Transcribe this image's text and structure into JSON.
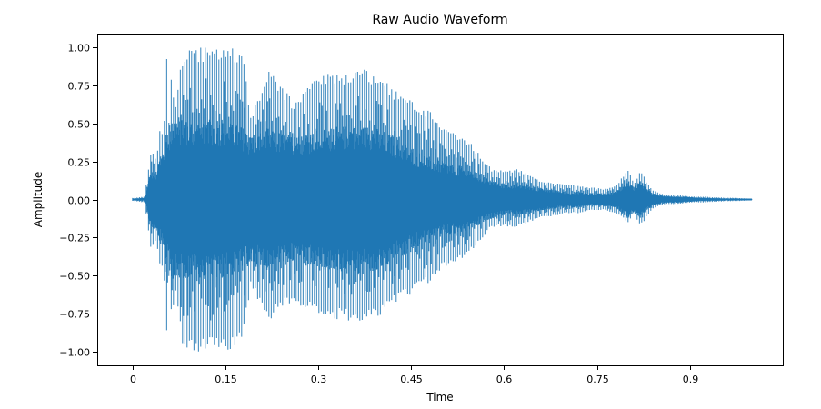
{
  "chart_data": {
    "type": "line",
    "title": "Raw Audio Waveform",
    "xlabel": "Time",
    "ylabel": "Amplitude",
    "xlim": [
      -0.057,
      1.05
    ],
    "ylim": [
      -1.09,
      1.09
    ],
    "xticks": [
      {
        "value": 0,
        "label": "0"
      },
      {
        "value": 0.15,
        "label": "0.15"
      },
      {
        "value": 0.3,
        "label": "0.3"
      },
      {
        "value": 0.45,
        "label": "0.45"
      },
      {
        "value": 0.6,
        "label": "0.6"
      },
      {
        "value": 0.75,
        "label": "0.75"
      },
      {
        "value": 0.9,
        "label": "0.9"
      }
    ],
    "yticks": [
      {
        "value": 1.0,
        "label": "1.00"
      },
      {
        "value": 0.75,
        "label": "0.75"
      },
      {
        "value": 0.5,
        "label": "0.50"
      },
      {
        "value": 0.25,
        "label": "0.25"
      },
      {
        "value": 0.0,
        "label": "0.00"
      },
      {
        "value": -0.25,
        "label": "−0.25"
      },
      {
        "value": -0.5,
        "label": "−0.50"
      },
      {
        "value": -0.75,
        "label": "−0.75"
      },
      {
        "value": -1.0,
        "label": "−1.00"
      }
    ],
    "grid": false,
    "legend": "none",
    "color": "#1f77b4",
    "series": [
      {
        "time": [
          0.0,
          0.02,
          0.022,
          0.03,
          0.038,
          0.045,
          0.05,
          0.055,
          0.058,
          0.062,
          0.07,
          0.08,
          0.09,
          0.1,
          0.12,
          0.14,
          0.16,
          0.18,
          0.19,
          0.2,
          0.22,
          0.24,
          0.26,
          0.28,
          0.3,
          0.32,
          0.34,
          0.36,
          0.38,
          0.4,
          0.42,
          0.44,
          0.46,
          0.48,
          0.5,
          0.52,
          0.54,
          0.56,
          0.58,
          0.6,
          0.62,
          0.64,
          0.66,
          0.68,
          0.7,
          0.72,
          0.74,
          0.76,
          0.78,
          0.8,
          0.81,
          0.82,
          0.83,
          0.84,
          0.86,
          0.88,
          0.9,
          0.92,
          0.94,
          0.96,
          0.98,
          1.0
        ],
        "peak_pos": [
          0.01,
          0.02,
          0.1,
          0.33,
          0.27,
          0.5,
          0.4,
          0.95,
          0.5,
          0.8,
          0.65,
          0.95,
          1.0,
          1.0,
          1.0,
          1.0,
          1.0,
          0.95,
          0.55,
          0.65,
          0.85,
          0.75,
          0.65,
          0.75,
          0.8,
          0.84,
          0.8,
          0.88,
          0.85,
          0.82,
          0.73,
          0.68,
          0.63,
          0.58,
          0.48,
          0.43,
          0.4,
          0.3,
          0.2,
          0.19,
          0.2,
          0.17,
          0.12,
          0.11,
          0.1,
          0.09,
          0.08,
          0.07,
          0.09,
          0.2,
          0.1,
          0.2,
          0.12,
          0.06,
          0.03,
          0.03,
          0.02,
          0.02,
          0.015,
          0.012,
          0.01,
          0.005
        ],
        "peak_neg": [
          -0.01,
          -0.02,
          -0.1,
          -0.33,
          -0.27,
          -0.45,
          -0.43,
          -0.93,
          -0.5,
          -0.78,
          -0.65,
          -0.95,
          -1.0,
          -1.0,
          -1.0,
          -1.0,
          -1.0,
          -0.9,
          -0.58,
          -0.65,
          -0.8,
          -0.72,
          -0.68,
          -0.72,
          -0.75,
          -0.8,
          -0.78,
          -0.82,
          -0.8,
          -0.78,
          -0.7,
          -0.65,
          -0.6,
          -0.55,
          -0.45,
          -0.42,
          -0.38,
          -0.28,
          -0.18,
          -0.18,
          -0.18,
          -0.15,
          -0.12,
          -0.11,
          -0.09,
          -0.09,
          -0.07,
          -0.07,
          -0.09,
          -0.15,
          -0.09,
          -0.18,
          -0.12,
          -0.06,
          -0.03,
          -0.03,
          -0.02,
          -0.02,
          -0.015,
          -0.012,
          -0.01,
          -0.005
        ],
        "inner": [
          0.005,
          0.01,
          0.05,
          0.2,
          0.18,
          0.28,
          0.3,
          0.45,
          0.4,
          0.5,
          0.5,
          0.5,
          0.5,
          0.5,
          0.5,
          0.5,
          0.48,
          0.45,
          0.4,
          0.42,
          0.45,
          0.42,
          0.4,
          0.42,
          0.44,
          0.45,
          0.46,
          0.47,
          0.46,
          0.44,
          0.4,
          0.35,
          0.3,
          0.27,
          0.24,
          0.22,
          0.2,
          0.16,
          0.12,
          0.1,
          0.1,
          0.09,
          0.07,
          0.06,
          0.05,
          0.05,
          0.04,
          0.04,
          0.05,
          0.12,
          0.08,
          0.12,
          0.07,
          0.04,
          0.02,
          0.02,
          0.015,
          0.01,
          0.008,
          0.006,
          0.005,
          0.003
        ]
      }
    ]
  }
}
